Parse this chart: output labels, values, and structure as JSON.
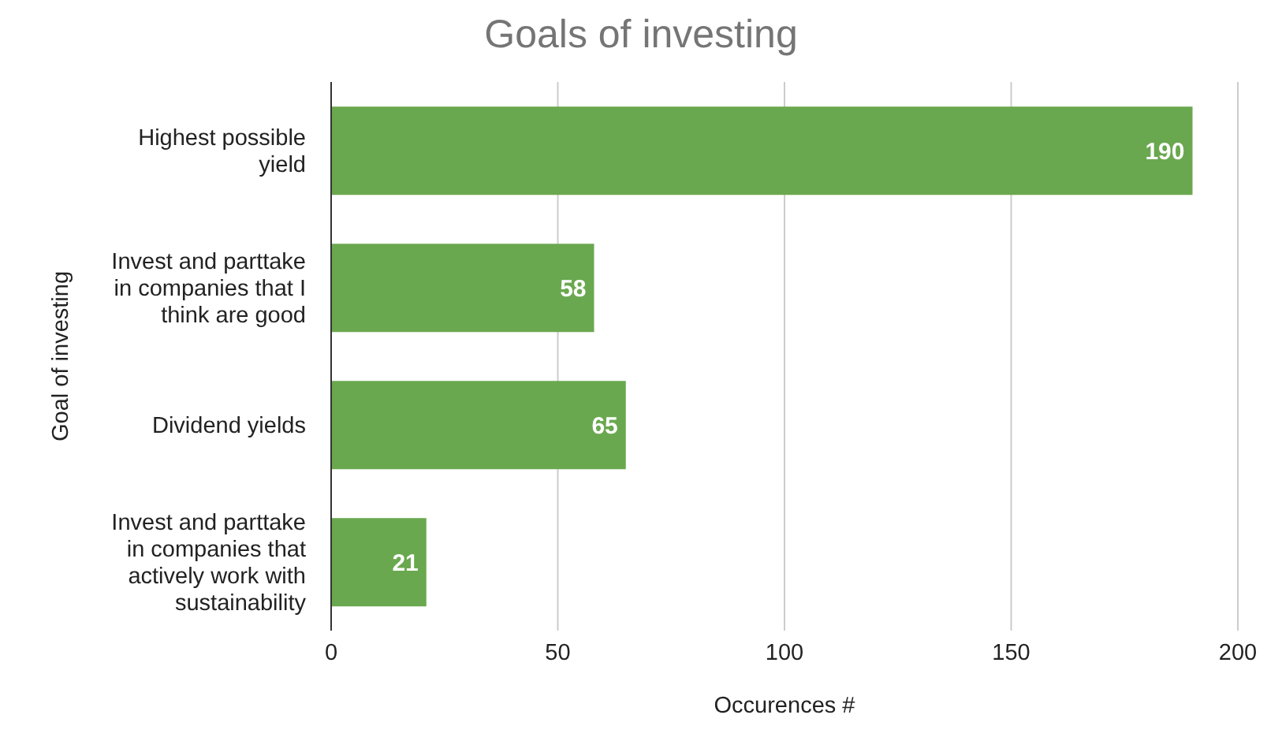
{
  "chart_data": {
    "type": "bar",
    "orientation": "horizontal",
    "title": "Goals of investing",
    "xlabel": "Occurences #",
    "ylabel": "Goal of investing",
    "categories": [
      "Highest possible yield",
      "Invest and parttake in companies that I think are good",
      "Dividend yields",
      "Invest and parttake in companies that actively work with sustainability"
    ],
    "values": [
      190,
      58,
      65,
      21
    ],
    "color": "#6aa84f",
    "xlim": [
      0,
      200
    ],
    "xticks": [
      0,
      50,
      100,
      150,
      200
    ],
    "grid": "x",
    "data_labels": true,
    "legend": false
  }
}
